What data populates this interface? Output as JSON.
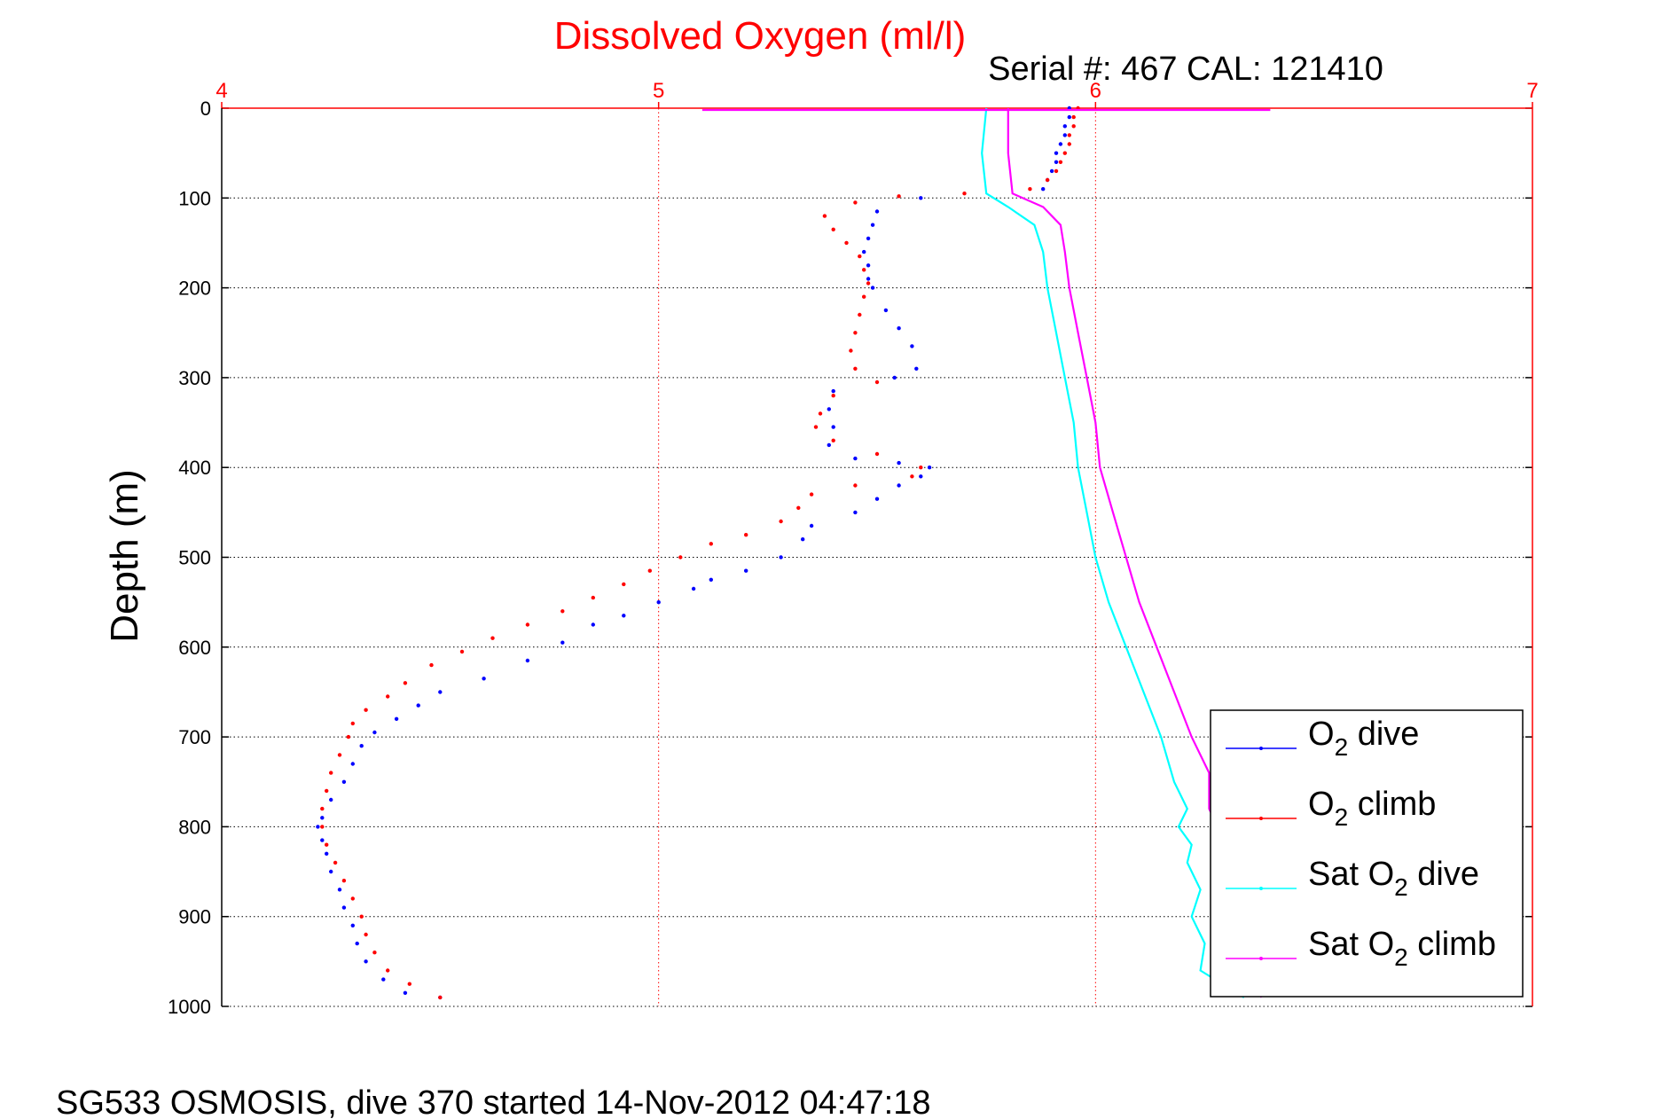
{
  "figure": {
    "title": "Dissolved Oxygen (ml/l)",
    "subtitle": "Serial #: 467  CAL: 121410",
    "footer": "SG533 OSMOSIS, dive 370 started 14-Nov-2012 04:47:18"
  },
  "colors": {
    "o2_dive": "#0000ff",
    "o2_climb": "#ff0000",
    "sat_dive": "#00ffff",
    "sat_climb": "#ff00ff",
    "title": "#ff0000",
    "top_axis": "#ff0000",
    "grid": "#000000"
  },
  "chart_data": {
    "type": "scatter",
    "title": "Dissolved Oxygen (ml/l)",
    "xlabel": "",
    "ylabel": "Depth (m)",
    "x_axis_position": "top",
    "y_reversed": true,
    "xlim": [
      4,
      7
    ],
    "ylim": [
      0,
      1000
    ],
    "xticks": [
      "4",
      "5",
      "6",
      "7"
    ],
    "yticks": [
      "0",
      "100",
      "200",
      "300",
      "400",
      "500",
      "600",
      "700",
      "800",
      "900",
      "1000"
    ],
    "grid": true,
    "legend_position": "bottom-right",
    "series": [
      {
        "name": "O2 dive",
        "legend": {
          "main": "O",
          "sub": "2",
          "rest": " dive"
        },
        "style": "points",
        "points": [
          [
            5.94,
            0
          ],
          [
            5.94,
            10
          ],
          [
            5.93,
            20
          ],
          [
            5.93,
            30
          ],
          [
            5.92,
            40
          ],
          [
            5.91,
            50
          ],
          [
            5.91,
            60
          ],
          [
            5.9,
            70
          ],
          [
            5.89,
            80
          ],
          [
            5.88,
            90
          ],
          [
            5.6,
            100
          ],
          [
            5.5,
            115
          ],
          [
            5.49,
            130
          ],
          [
            5.48,
            145
          ],
          [
            5.47,
            160
          ],
          [
            5.48,
            175
          ],
          [
            5.48,
            190
          ],
          [
            5.49,
            200
          ],
          [
            5.52,
            225
          ],
          [
            5.55,
            245
          ],
          [
            5.58,
            265
          ],
          [
            5.59,
            290
          ],
          [
            5.54,
            300
          ],
          [
            5.4,
            315
          ],
          [
            5.39,
            335
          ],
          [
            5.4,
            355
          ],
          [
            5.39,
            375
          ],
          [
            5.45,
            390
          ],
          [
            5.55,
            395
          ],
          [
            5.62,
            400
          ],
          [
            5.6,
            410
          ],
          [
            5.55,
            420
          ],
          [
            5.5,
            435
          ],
          [
            5.45,
            450
          ],
          [
            5.35,
            465
          ],
          [
            5.33,
            480
          ],
          [
            5.28,
            500
          ],
          [
            5.2,
            515
          ],
          [
            5.12,
            525
          ],
          [
            5.08,
            535
          ],
          [
            5.0,
            550
          ],
          [
            4.92,
            565
          ],
          [
            4.85,
            575
          ],
          [
            4.78,
            595
          ],
          [
            4.7,
            615
          ],
          [
            4.6,
            635
          ],
          [
            4.5,
            650
          ],
          [
            4.45,
            665
          ],
          [
            4.4,
            680
          ],
          [
            4.35,
            695
          ],
          [
            4.32,
            710
          ],
          [
            4.3,
            730
          ],
          [
            4.28,
            750
          ],
          [
            4.25,
            770
          ],
          [
            4.23,
            790
          ],
          [
            4.22,
            800
          ],
          [
            4.23,
            815
          ],
          [
            4.24,
            830
          ],
          [
            4.25,
            850
          ],
          [
            4.27,
            870
          ],
          [
            4.28,
            890
          ],
          [
            4.3,
            910
          ],
          [
            4.31,
            930
          ],
          [
            4.33,
            950
          ],
          [
            4.37,
            970
          ],
          [
            4.42,
            985
          ],
          [
            4.5,
            990
          ]
        ]
      },
      {
        "name": "O2 climb",
        "legend": {
          "main": "O",
          "sub": "2",
          "rest": " climb"
        },
        "style": "points",
        "points": [
          [
            5.96,
            0
          ],
          [
            5.95,
            10
          ],
          [
            5.95,
            20
          ],
          [
            5.94,
            30
          ],
          [
            5.94,
            40
          ],
          [
            5.93,
            50
          ],
          [
            5.92,
            60
          ],
          [
            5.91,
            70
          ],
          [
            5.89,
            80
          ],
          [
            5.85,
            90
          ],
          [
            5.7,
            95
          ],
          [
            5.55,
            98
          ],
          [
            5.45,
            105
          ],
          [
            5.38,
            120
          ],
          [
            5.4,
            135
          ],
          [
            5.43,
            150
          ],
          [
            5.46,
            165
          ],
          [
            5.47,
            180
          ],
          [
            5.48,
            195
          ],
          [
            5.47,
            210
          ],
          [
            5.46,
            230
          ],
          [
            5.45,
            250
          ],
          [
            5.44,
            270
          ],
          [
            5.45,
            290
          ],
          [
            5.5,
            305
          ],
          [
            5.4,
            320
          ],
          [
            5.37,
            340
          ],
          [
            5.36,
            355
          ],
          [
            5.4,
            370
          ],
          [
            5.5,
            385
          ],
          [
            5.6,
            400
          ],
          [
            5.58,
            410
          ],
          [
            5.45,
            420
          ],
          [
            5.35,
            430
          ],
          [
            5.32,
            445
          ],
          [
            5.28,
            460
          ],
          [
            5.2,
            475
          ],
          [
            5.12,
            485
          ],
          [
            5.05,
            500
          ],
          [
            4.98,
            515
          ],
          [
            4.92,
            530
          ],
          [
            4.85,
            545
          ],
          [
            4.78,
            560
          ],
          [
            4.7,
            575
          ],
          [
            4.62,
            590
          ],
          [
            4.55,
            605
          ],
          [
            4.48,
            620
          ],
          [
            4.42,
            640
          ],
          [
            4.38,
            655
          ],
          [
            4.33,
            670
          ],
          [
            4.3,
            685
          ],
          [
            4.29,
            700
          ],
          [
            4.27,
            720
          ],
          [
            4.25,
            740
          ],
          [
            4.24,
            760
          ],
          [
            4.23,
            780
          ],
          [
            4.23,
            800
          ],
          [
            4.24,
            820
          ],
          [
            4.26,
            840
          ],
          [
            4.28,
            860
          ],
          [
            4.3,
            880
          ],
          [
            4.32,
            900
          ],
          [
            4.33,
            920
          ],
          [
            4.35,
            940
          ],
          [
            4.38,
            960
          ],
          [
            4.43,
            975
          ],
          [
            4.5,
            990
          ]
        ]
      },
      {
        "name": "Sat O2 dive",
        "legend": {
          "main": "Sat O",
          "sub": "2",
          "rest": " dive"
        },
        "style": "line",
        "points": [
          [
            5.75,
            0
          ],
          [
            5.74,
            50
          ],
          [
            5.75,
            95
          ],
          [
            5.8,
            110
          ],
          [
            5.86,
            130
          ],
          [
            5.88,
            160
          ],
          [
            5.89,
            200
          ],
          [
            5.91,
            250
          ],
          [
            5.93,
            300
          ],
          [
            5.95,
            350
          ],
          [
            5.96,
            400
          ],
          [
            5.98,
            450
          ],
          [
            6.0,
            500
          ],
          [
            6.03,
            550
          ],
          [
            6.07,
            600
          ],
          [
            6.11,
            650
          ],
          [
            6.15,
            700
          ],
          [
            6.18,
            750
          ],
          [
            6.21,
            780
          ],
          [
            6.19,
            800
          ],
          [
            6.22,
            820
          ],
          [
            6.21,
            840
          ],
          [
            6.24,
            870
          ],
          [
            6.22,
            900
          ],
          [
            6.25,
            930
          ],
          [
            6.24,
            960
          ],
          [
            6.34,
            990
          ]
        ]
      },
      {
        "name": "Sat O2 climb",
        "legend": {
          "main": "Sat O",
          "sub": "2",
          "rest": " climb"
        },
        "style": "line",
        "points": [
          [
            5.8,
            0
          ],
          [
            5.8,
            50
          ],
          [
            5.81,
            95
          ],
          [
            5.88,
            110
          ],
          [
            5.92,
            130
          ],
          [
            5.93,
            160
          ],
          [
            5.94,
            200
          ],
          [
            5.96,
            250
          ],
          [
            5.98,
            300
          ],
          [
            6.0,
            350
          ],
          [
            6.01,
            400
          ],
          [
            6.04,
            450
          ],
          [
            6.07,
            500
          ],
          [
            6.1,
            550
          ],
          [
            6.14,
            600
          ],
          [
            6.18,
            650
          ],
          [
            6.22,
            700
          ],
          [
            6.26,
            740
          ],
          [
            6.26,
            780
          ],
          [
            6.28,
            800
          ],
          [
            6.3,
            850
          ],
          [
            6.32,
            900
          ],
          [
            6.34,
            950
          ],
          [
            6.38,
            990
          ]
        ]
      },
      {
        "name": "",
        "style": "line",
        "color": "#ff00ff",
        "points": [
          [
            5.1,
            2
          ],
          [
            6.4,
            2
          ]
        ]
      }
    ]
  }
}
